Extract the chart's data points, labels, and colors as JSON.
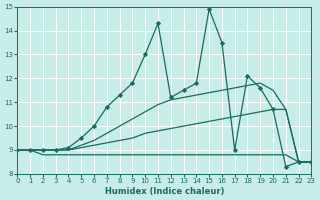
{
  "xlabel": "Humidex (Indice chaleur)",
  "bg_color": "#c8ece8",
  "grid_color": "#b0d8d4",
  "line_color": "#1a6b5e",
  "xlim": [
    0,
    23
  ],
  "ylim": [
    8,
    15
  ],
  "xticks": [
    0,
    1,
    2,
    3,
    4,
    5,
    6,
    7,
    8,
    9,
    10,
    11,
    12,
    13,
    14,
    15,
    16,
    17,
    18,
    19,
    20,
    21,
    22,
    23
  ],
  "yticks": [
    8,
    9,
    10,
    11,
    12,
    13,
    14,
    15
  ],
  "line1": {
    "x": [
      0,
      1,
      2,
      3,
      4,
      5,
      6,
      7,
      8,
      9,
      10,
      11,
      12,
      13,
      14,
      15,
      16,
      17,
      18,
      19,
      20,
      21,
      22,
      23
    ],
    "y": [
      9,
      9,
      8.8,
      8.8,
      8.8,
      8.8,
      8.8,
      8.8,
      8.8,
      8.8,
      8.8,
      8.8,
      8.8,
      8.8,
      8.8,
      8.8,
      8.8,
      8.8,
      8.8,
      8.8,
      8.8,
      8.8,
      8.5,
      8.5
    ]
  },
  "line2": {
    "x": [
      0,
      1,
      2,
      3,
      4,
      5,
      6,
      7,
      8,
      9,
      10,
      11,
      12,
      13,
      14,
      15,
      16,
      17,
      18,
      19,
      20,
      21,
      22,
      23
    ],
    "y": [
      9,
      9,
      9,
      9,
      9,
      9.1,
      9.2,
      9.3,
      9.4,
      9.5,
      9.7,
      9.8,
      9.9,
      10.0,
      10.1,
      10.2,
      10.3,
      10.4,
      10.5,
      10.6,
      10.7,
      10.7,
      8.5,
      8.5
    ]
  },
  "line3": {
    "x": [
      0,
      1,
      2,
      3,
      4,
      5,
      6,
      7,
      8,
      9,
      10,
      11,
      12,
      13,
      14,
      15,
      16,
      17,
      18,
      19,
      20,
      21,
      22,
      23
    ],
    "y": [
      9,
      9,
      9,
      9,
      9,
      9.2,
      9.4,
      9.7,
      10.0,
      10.3,
      10.6,
      10.9,
      11.1,
      11.2,
      11.3,
      11.4,
      11.5,
      11.6,
      11.7,
      11.8,
      11.5,
      10.7,
      8.5,
      8.5
    ]
  },
  "line4": {
    "x": [
      0,
      1,
      2,
      3,
      4,
      5,
      6,
      7,
      8,
      9,
      10,
      11,
      12,
      13,
      14,
      15,
      16,
      17,
      18,
      19,
      20,
      21,
      22,
      23
    ],
    "y": [
      9,
      9,
      9,
      9,
      9.1,
      9.5,
      10.0,
      10.8,
      11.3,
      11.8,
      13.0,
      14.3,
      11.2,
      11.5,
      11.8,
      14.9,
      13.5,
      9.0,
      12.1,
      11.6,
      10.7,
      8.3,
      8.5,
      8.5
    ],
    "marker": "D"
  }
}
